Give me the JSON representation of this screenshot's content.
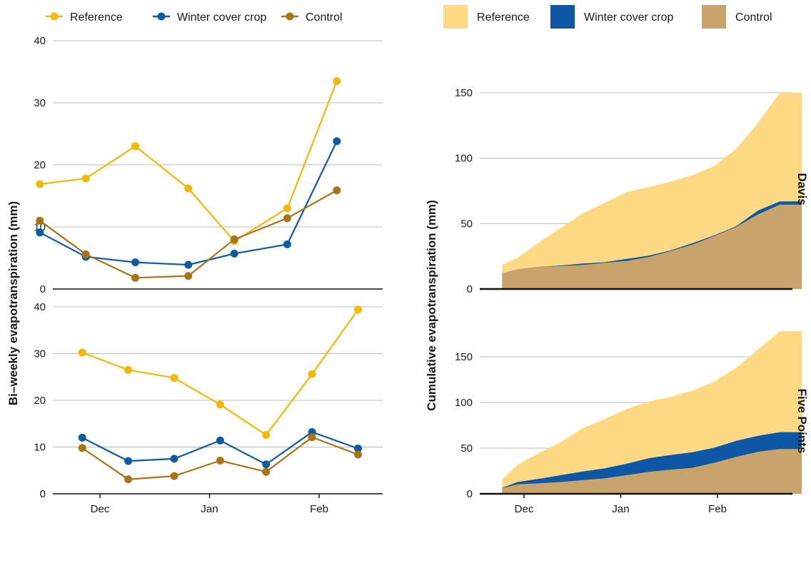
{
  "colors": {
    "reference_line": "#F2B807",
    "cover_crop_line": "#0E5CA0",
    "control_line": "#A8741A",
    "reference_area": "#FDD984",
    "cover_crop_area": "#0E56A6",
    "control_area": "#C8A46A",
    "grid": "#BBBBBB",
    "axis": "#111111"
  },
  "left_legend": [
    {
      "label": "Reference",
      "color_key": "reference_line"
    },
    {
      "label": "Winter cover crop",
      "color_key": "cover_crop_line"
    },
    {
      "label": "Control",
      "color_key": "control_line"
    }
  ],
  "right_legend": [
    {
      "label": "Reference",
      "color_key": "reference_area"
    },
    {
      "label": "Winter cover crop",
      "color_key": "cover_crop_area"
    },
    {
      "label": "Control",
      "color_key": "control_area"
    }
  ],
  "left_ylabel": "Bi–weekly evapotranspiration (mm)",
  "right_ylabel": "Cumulative evapotranspiration (mm)",
  "chart_data": [
    {
      "type": "line",
      "panel": "left-top",
      "x_ticks": [
        "Dec",
        "Jan",
        "Feb"
      ],
      "x_tick_dates": [
        "2018-12-01",
        "2019-01-01",
        "2019-02-01"
      ],
      "yticks": [
        0,
        10,
        20,
        30,
        40
      ],
      "ylim": [
        0,
        40
      ],
      "series": [
        {
          "name": "Reference",
          "x": [
            "2018-11-14",
            "2018-11-27",
            "2018-12-11",
            "2018-12-26",
            "2019-01-08",
            "2019-01-23",
            "2019-02-06"
          ],
          "values": [
            16.9,
            17.8,
            23.0,
            16.2,
            7.7,
            13.0,
            33.5
          ]
        },
        {
          "name": "Winter cover crop",
          "x": [
            "2018-11-14",
            "2018-11-27",
            "2018-12-11",
            "2018-12-26",
            "2019-01-08",
            "2019-01-23",
            "2019-02-06"
          ],
          "values": [
            9.1,
            5.2,
            4.3,
            3.9,
            5.7,
            7.2,
            23.8
          ]
        },
        {
          "name": "Control",
          "x": [
            "2018-11-14",
            "2018-11-27",
            "2018-12-11",
            "2018-12-26",
            "2019-01-08",
            "2019-01-23",
            "2019-02-06"
          ],
          "values": [
            11.0,
            5.6,
            1.8,
            2.1,
            8.0,
            11.4,
            15.9
          ]
        }
      ]
    },
    {
      "type": "line",
      "panel": "left-bottom",
      "x_ticks": [
        "Dec",
        "Jan",
        "Feb"
      ],
      "x_tick_dates": [
        "2018-12-01",
        "2019-01-01",
        "2019-02-01"
      ],
      "yticks": [
        0,
        10,
        20,
        30,
        40
      ],
      "ylim": [
        0,
        40
      ],
      "series": [
        {
          "name": "Reference",
          "x": [
            "2018-11-26",
            "2018-12-09",
            "2018-12-22",
            "2019-01-04",
            "2019-01-17",
            "2019-01-30",
            "2019-02-12"
          ],
          "values": [
            30.2,
            26.5,
            24.8,
            19.1,
            12.6,
            25.6,
            39.4
          ]
        },
        {
          "name": "Winter cover crop",
          "x": [
            "2018-11-26",
            "2018-12-09",
            "2018-12-22",
            "2019-01-04",
            "2019-01-17",
            "2019-01-30",
            "2019-02-12"
          ],
          "values": [
            12.0,
            7.0,
            7.5,
            11.4,
            6.3,
            13.2,
            9.7
          ]
        },
        {
          "name": "Control",
          "x": [
            "2018-11-26",
            "2018-12-09",
            "2018-12-22",
            "2019-01-04",
            "2019-01-17",
            "2019-01-30",
            "2019-02-12"
          ],
          "values": [
            9.8,
            3.1,
            3.8,
            7.1,
            4.7,
            12.1,
            8.4
          ]
        }
      ]
    },
    {
      "type": "area",
      "panel": "right-top",
      "facet_label": "Davis",
      "x_ticks": [
        "Dec",
        "Jan",
        "Feb"
      ],
      "x_tick_dates": [
        "2018-12-01",
        "2019-01-01",
        "2019-02-01"
      ],
      "yticks": [
        0,
        50,
        100,
        150
      ],
      "ylim": [
        0,
        150
      ],
      "x": [
        "2018-11-24",
        "2018-11-29",
        "2018-12-06",
        "2018-12-13",
        "2018-12-20",
        "2018-12-27",
        "2019-01-03",
        "2019-01-10",
        "2019-01-17",
        "2019-01-24",
        "2019-01-31",
        "2019-02-07",
        "2019-02-14",
        "2019-02-21",
        "2019-02-28"
      ],
      "series": [
        {
          "name": "Reference",
          "values": [
            18.5,
            24,
            36,
            47,
            58,
            66,
            74,
            78,
            82,
            87,
            94,
            107,
            127,
            150,
            150
          ]
        },
        {
          "name": "Winter cover crop",
          "values": [
            12,
            15,
            17,
            18,
            19.5,
            20.5,
            23,
            25.5,
            29.5,
            35,
            41,
            48,
            60,
            67,
            67
          ]
        },
        {
          "name": "Control",
          "values": [
            12,
            15,
            17,
            17.5,
            18.5,
            20,
            21.5,
            24.5,
            29,
            34,
            40.5,
            47.5,
            57,
            64.5,
            64.5
          ]
        }
      ]
    },
    {
      "type": "area",
      "panel": "right-bottom",
      "facet_label": "Five Points",
      "x_ticks": [
        "Dec",
        "Jan",
        "Feb"
      ],
      "x_tick_dates": [
        "2018-12-01",
        "2019-01-01",
        "2019-02-01"
      ],
      "yticks": [
        0,
        50,
        100,
        150
      ],
      "ylim": [
        0,
        180
      ],
      "x": [
        "2018-11-24",
        "2018-11-29",
        "2018-12-06",
        "2018-12-13",
        "2018-12-20",
        "2018-12-27",
        "2019-01-03",
        "2019-01-10",
        "2019-01-17",
        "2019-01-24",
        "2019-01-31",
        "2019-02-07",
        "2019-02-14",
        "2019-02-21",
        "2019-02-28"
      ],
      "series": [
        {
          "name": "Reference",
          "values": [
            16,
            32,
            45,
            57,
            72,
            82,
            93,
            101,
            106,
            113,
            123,
            138,
            158,
            178,
            178
          ]
        },
        {
          "name": "Winter cover crop",
          "values": [
            6.5,
            13,
            16.5,
            20.5,
            24.5,
            28,
            33,
            39,
            42.5,
            45.5,
            50.5,
            58,
            63.5,
            67.5,
            67.5
          ]
        },
        {
          "name": "Control",
          "values": [
            6,
            10.5,
            11.5,
            13,
            15,
            17,
            20.5,
            24,
            26.5,
            28.5,
            34,
            40.5,
            46,
            49,
            49
          ]
        }
      ]
    }
  ]
}
